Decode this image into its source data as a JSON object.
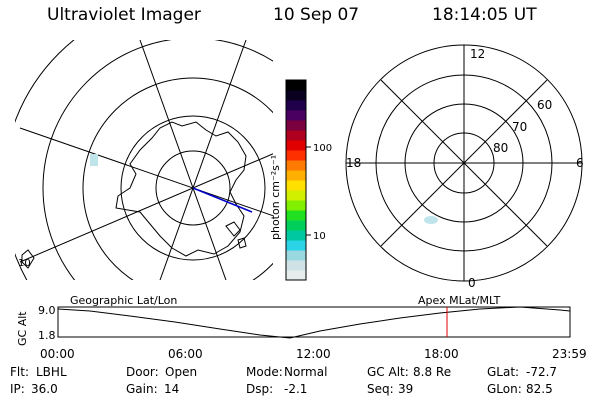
{
  "header": {
    "title": "Ultraviolet Imager",
    "date": "10 Sep 07",
    "time": "18:14:05 UT"
  },
  "geo_map": {
    "edge_label": "10"
  },
  "colorbar": {
    "unit_label": "photon cm⁻²s⁻¹",
    "ticks": [
      "100",
      "10"
    ],
    "colors": [
      "#e6eded",
      "#cfe3e6",
      "#9ad8e0",
      "#2ad4e6",
      "#00c8a0",
      "#00d05a",
      "#20e020",
      "#80f000",
      "#d0f000",
      "#ffe000",
      "#ffb000",
      "#ff7a00",
      "#ff3000",
      "#e00000",
      "#b00020",
      "#7a0040",
      "#4a0060",
      "#20004a",
      "#0a0020",
      "#000000"
    ]
  },
  "polar": {
    "mlt_labels": {
      "top": "12",
      "left": "18",
      "right": "6",
      "bottom": "0"
    },
    "lat_labels": [
      "60",
      "70",
      "80"
    ]
  },
  "timeline": {
    "y_axis_label": "GC Alt",
    "y_ticks": [
      "9.0",
      "1.8"
    ],
    "left_title": "Geographic Lat/Lon",
    "right_title": "Apex  MLat/MLT",
    "x_ticks": [
      "00:00",
      "06:00",
      "12:00",
      "18:00",
      "23:59"
    ],
    "current_time_marker_color": "#dd0000"
  },
  "info": {
    "rows": [
      [
        {
          "label": "Flt:",
          "value": "LBHL"
        },
        {
          "label": "Door:",
          "value": "Open"
        },
        {
          "label": "Mode:",
          "value": "Normal"
        },
        {
          "label": "GC Alt:",
          "value": "8.8 Re"
        },
        {
          "label": "GLat:",
          "value": "-72.7"
        }
      ],
      [
        {
          "label": "IP:",
          "value": "36.0"
        },
        {
          "label": "Gain:",
          "value": "14"
        },
        {
          "label": "Dsp:",
          "value": "-2.1"
        },
        {
          "label": "Seq:",
          "value": "39"
        },
        {
          "label": "GLon:",
          "value": "82.5"
        }
      ]
    ]
  }
}
